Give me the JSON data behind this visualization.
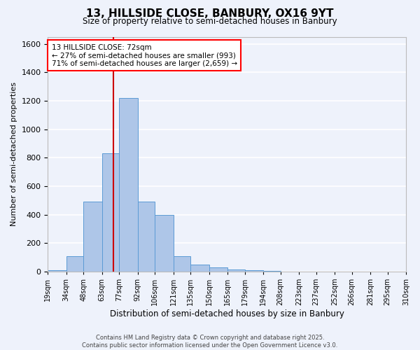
{
  "title": "13, HILLSIDE CLOSE, BANBURY, OX16 9YT",
  "subtitle": "Size of property relative to semi-detached houses in Banbury",
  "xlabel": "Distribution of semi-detached houses by size in Banbury",
  "ylabel": "Number of semi-detached properties",
  "property_size": 72,
  "annotation_line1": "13 HILLSIDE CLOSE: 72sqm",
  "annotation_line2": "← 27% of semi-detached houses are smaller (993)",
  "annotation_line3": "71% of semi-detached houses are larger (2,659) →",
  "footer_line1": "Contains HM Land Registry data © Crown copyright and database right 2025.",
  "footer_line2": "Contains public sector information licensed under the Open Government Licence v3.0.",
  "bin_edges": [
    19,
    34,
    48,
    63,
    77,
    92,
    106,
    121,
    135,
    150,
    165,
    179,
    194,
    208,
    223,
    237,
    252,
    266,
    281,
    295,
    310
  ],
  "bar_heights": [
    10,
    110,
    490,
    830,
    1220,
    490,
    400,
    110,
    50,
    30,
    15,
    10,
    5,
    2,
    0,
    0,
    0,
    0,
    0,
    0
  ],
  "bar_color": "#aec6e8",
  "bar_edge_color": "#5b9bd5",
  "vline_color": "#cc0000",
  "background_color": "#eef2fb",
  "grid_color": "#ffffff",
  "ylim": [
    0,
    1650
  ],
  "yticks": [
    0,
    200,
    400,
    600,
    800,
    1000,
    1200,
    1400,
    1600
  ]
}
